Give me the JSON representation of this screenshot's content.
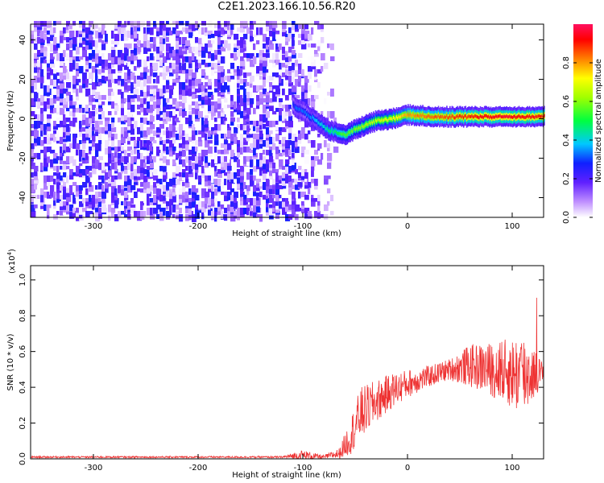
{
  "title": "C2E1.2023.166.10.56.R20",
  "chart_data": [
    {
      "type": "heatmap",
      "xlabel": "Height of straight line (km)",
      "ylabel": "Frequency (Hz)",
      "xlim": [
        -360,
        130
      ],
      "ylim": [
        -50,
        48
      ],
      "xticks": [
        -300,
        -200,
        -100,
        0,
        100
      ],
      "yticks": [
        -40,
        -20,
        0,
        20,
        40
      ],
      "colorbar": {
        "label": "Normalized spectral amplitude",
        "range": [
          0.0,
          1.0
        ],
        "ticks": [
          "0.0",
          "0.2",
          "0.4",
          "0.6",
          "0.8"
        ]
      },
      "noise_region": {
        "x_range": [
          -360,
          -70
        ],
        "freq_range": [
          -50,
          48
        ],
        "amplitude": 0.1
      },
      "ridge": {
        "description": "dominant spectral line",
        "points": [
          {
            "x": -110,
            "freq": 7,
            "amp": 0.3
          },
          {
            "x": -90,
            "freq": 0,
            "amp": 0.35
          },
          {
            "x": -75,
            "freq": -6,
            "amp": 0.45
          },
          {
            "x": -60,
            "freq": -8,
            "amp": 0.55
          },
          {
            "x": -45,
            "freq": -4,
            "amp": 0.6
          },
          {
            "x": -30,
            "freq": -1,
            "amp": 0.65
          },
          {
            "x": -15,
            "freq": 0,
            "amp": 0.7
          },
          {
            "x": 0,
            "freq": 2,
            "amp": 0.8
          },
          {
            "x": 30,
            "freq": 1,
            "amp": 0.85
          },
          {
            "x": 60,
            "freq": 1,
            "amp": 0.9
          },
          {
            "x": 90,
            "freq": 1,
            "amp": 0.95
          },
          {
            "x": 130,
            "freq": 1,
            "amp": 0.9
          }
        ]
      }
    },
    {
      "type": "line",
      "xlabel": "Height of straight line (km)",
      "ylabel": "SNR (10 * v/v)",
      "y_multiplier": "(x10",
      "y_multiplier_exp": "4",
      "xlim": [
        -360,
        130
      ],
      "ylim": [
        0,
        1.08
      ],
      "xticks": [
        -300,
        -200,
        -100,
        0,
        100
      ],
      "yticks": [
        "0.0",
        "0.2",
        "0.4",
        "0.6",
        "0.8",
        "1.0"
      ],
      "color": "#ee3333",
      "series": [
        {
          "envelope_x": [
            -360,
            -120,
            -100,
            -80,
            -65,
            -55,
            -45,
            -30,
            -15,
            0,
            20,
            40,
            60,
            80,
            100,
            110,
            120,
            130
          ],
          "envelope_mean": [
            0.01,
            0.01,
            0.02,
            0.01,
            0.03,
            0.12,
            0.25,
            0.32,
            0.38,
            0.42,
            0.46,
            0.5,
            0.52,
            0.5,
            0.48,
            0.47,
            0.48,
            0.48
          ],
          "envelope_spread": [
            0.005,
            0.005,
            0.03,
            0.01,
            0.03,
            0.1,
            0.15,
            0.12,
            0.1,
            0.08,
            0.06,
            0.06,
            0.12,
            0.15,
            0.2,
            0.25,
            0.15,
            0.05
          ]
        }
      ]
    }
  ]
}
